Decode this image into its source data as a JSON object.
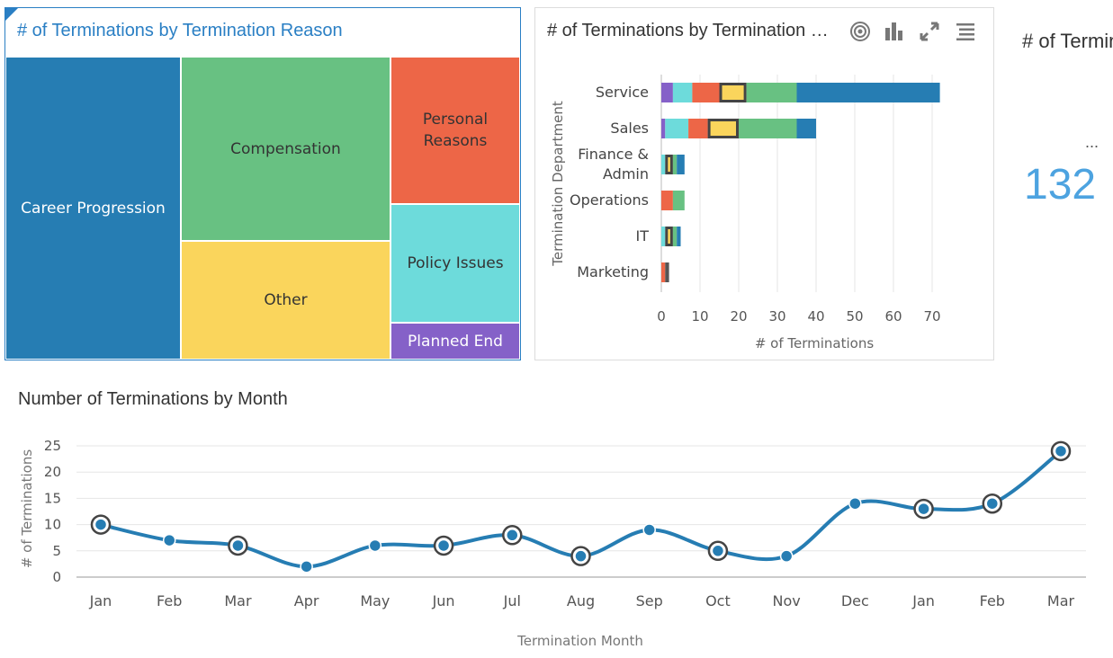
{
  "treemap": {
    "title": "# of Terminations by Termination Reason",
    "cells": [
      {
        "label": "Career Progression",
        "color": "#267db3",
        "text_color": "#ffffff"
      },
      {
        "label": "Compensation",
        "color": "#68c182",
        "text_color": "#333333"
      },
      {
        "label": "Personal\nReasons",
        "color": "#ed6647",
        "text_color": "#333333"
      },
      {
        "label": "Other",
        "color": "#fad55c",
        "text_color": "#333333"
      },
      {
        "label": "Policy Issues",
        "color": "#6ddbdb",
        "text_color": "#333333"
      },
      {
        "label": "Planned End",
        "color": "#8561c8",
        "text_color": "#ffffff"
      }
    ]
  },
  "bar_panel": {
    "title": "# of Terminations by Termination Department",
    "toolbar": [
      "target-icon",
      "bar-chart-icon",
      "expand-icon",
      "menu-icon"
    ]
  },
  "kpi": {
    "title": "# of Terminations",
    "more": "...",
    "value": "132"
  },
  "chart_data": [
    {
      "type": "bar",
      "orientation": "horizontal",
      "stacked": true,
      "categories": [
        "Service",
        "Sales",
        "Finance &\nAdmin",
        "Operations",
        "IT",
        "Marketing"
      ],
      "series": [
        {
          "color": "#8561c8",
          "values": [
            3,
            1,
            0,
            0,
            0,
            0
          ]
        },
        {
          "color": "#6ddbdb",
          "values": [
            5,
            6,
            1,
            0,
            1,
            0
          ]
        },
        {
          "color": "#ed6647",
          "values": [
            7,
            5,
            0,
            3,
            0,
            1
          ]
        },
        {
          "color": "#fad55c",
          "values": [
            7,
            8,
            2,
            0,
            2,
            0
          ]
        },
        {
          "color": "#68c182",
          "values": [
            13,
            15,
            1,
            3,
            1,
            0
          ]
        },
        {
          "color": "#267db3",
          "values": [
            37,
            5,
            2,
            0,
            1,
            0
          ]
        },
        {
          "color": "#555555",
          "values": [
            0,
            0,
            0,
            0,
            0,
            1
          ]
        }
      ],
      "highlight_series_index": 3,
      "xlabel": "# of Terminations",
      "ylabel": "Termination Department",
      "xlim": [
        0,
        75
      ],
      "xticks": [
        0,
        10,
        20,
        30,
        40,
        50,
        60,
        70
      ],
      "grid": true
    },
    {
      "type": "line",
      "title": "Number of Terminations by Month",
      "x": [
        "Jan",
        "Feb",
        "Mar",
        "Apr",
        "May",
        "Jun",
        "Jul",
        "Aug",
        "Sep",
        "Oct",
        "Nov",
        "Dec",
        "Jan",
        "Feb",
        "Mar"
      ],
      "values": [
        10,
        7,
        6,
        2,
        6,
        6,
        8,
        4,
        9,
        5,
        4,
        14,
        13,
        14,
        24
      ],
      "selected": [
        true,
        false,
        true,
        false,
        false,
        true,
        true,
        true,
        false,
        true,
        false,
        false,
        true,
        true,
        true
      ],
      "xlabel": "Termination Month",
      "ylabel": "# of Terminations",
      "ylim": [
        0,
        25
      ],
      "yticks": [
        0,
        5,
        10,
        15,
        20,
        25
      ],
      "grid": true,
      "color": "#267db3"
    }
  ]
}
